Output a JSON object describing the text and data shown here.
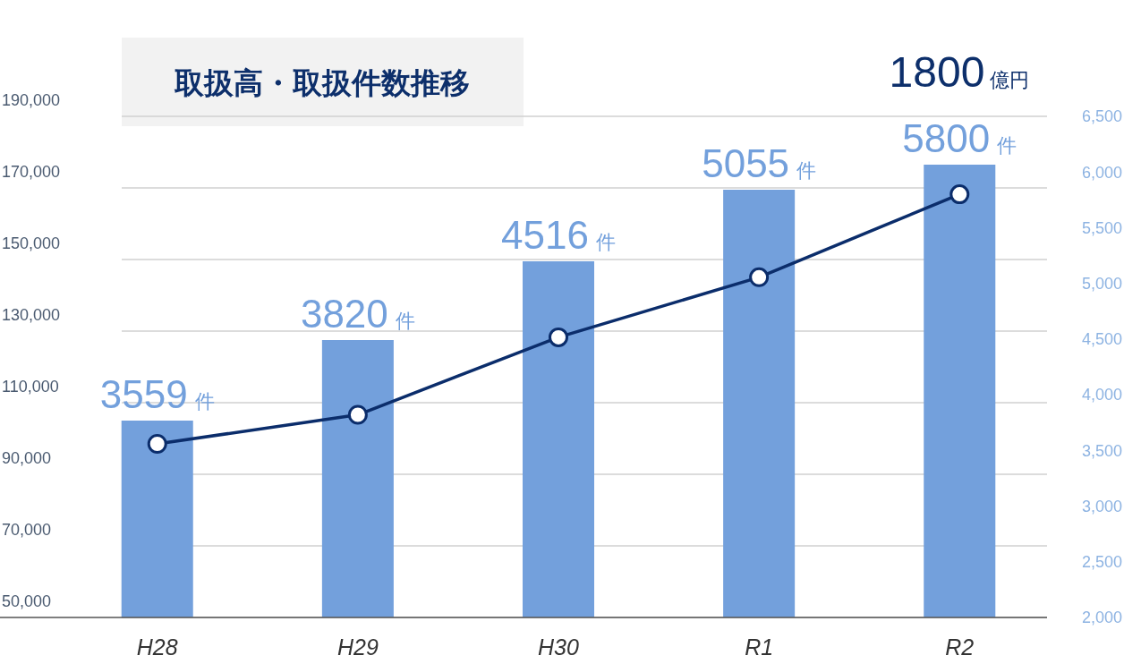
{
  "chart_data": {
    "type": "bar",
    "title": "取扱高・取扱件数推移",
    "categories": [
      "H28",
      "H29",
      "H30",
      "R1",
      "R2"
    ],
    "series": [
      {
        "color": "#73a0dc",
        "values": [
          105000,
          127500,
          149500,
          169500,
          176500
        ]
      },
      {
        "type": "line",
        "axis": "y2",
        "color": "#0b2d6b",
        "values": [
          3559,
          3820,
          4516,
          5055,
          5800
        ],
        "value_labels": [
          "3559 件",
          "3820 件",
          "4516 件",
          "5055 件",
          "5800 件"
        ]
      }
    ],
    "ylim": [
      50000,
      190000
    ],
    "yticks": [
      {
        "value": 50000,
        "label": "50,000"
      },
      {
        "value": 70000,
        "label": "70,000"
      },
      {
        "value": 90000,
        "label": "90,000"
      },
      {
        "value": 110000,
        "label": "110,000"
      },
      {
        "value": 130000,
        "label": "130,000"
      },
      {
        "value": 150000,
        "label": "150,000"
      },
      {
        "value": 170000,
        "label": "170,000"
      },
      {
        "value": 190000,
        "label": "190,000"
      }
    ],
    "y2lim": [
      2000,
      6500
    ],
    "y2ticks": [
      {
        "value": 2000,
        "label": "2,000"
      },
      {
        "value": 2500,
        "label": "2,500"
      },
      {
        "value": 3000,
        "label": "3,000"
      },
      {
        "value": 3500,
        "label": "3,500"
      },
      {
        "value": 4000,
        "label": "4,000"
      },
      {
        "value": 4500,
        "label": "4,500"
      },
      {
        "value": 5000,
        "label": "5,000"
      },
      {
        "value": 5500,
        "label": "5,500"
      },
      {
        "value": 6000,
        "label": "6,000"
      },
      {
        "value": 6500,
        "label": "6,500"
      }
    ],
    "grid": "y",
    "marker": "circle",
    "annotations": [
      "1800億円"
    ]
  }
}
